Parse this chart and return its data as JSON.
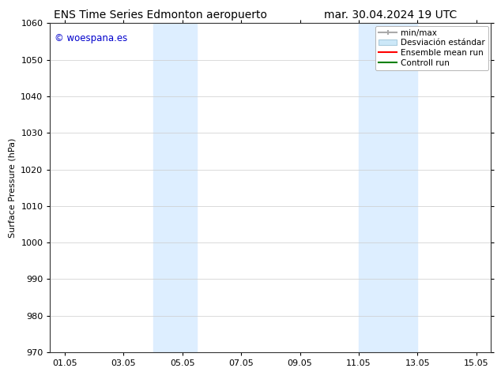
{
  "title_left": "ENS Time Series Edmonton aeropuerto",
  "title_right": "mar. 30.04.2024 19 UTC",
  "ylabel": "Surface Pressure (hPa)",
  "ylim": [
    970,
    1060
  ],
  "yticks": [
    970,
    980,
    990,
    1000,
    1010,
    1020,
    1030,
    1040,
    1050,
    1060
  ],
  "xlim": [
    0.5,
    15.5
  ],
  "xticks": [
    1.0,
    3.0,
    5.0,
    7.0,
    9.0,
    11.0,
    13.0,
    15.0
  ],
  "xticklabels": [
    "01.05",
    "03.05",
    "05.05",
    "07.05",
    "09.05",
    "11.05",
    "13.05",
    "15.05"
  ],
  "shaded_regions": [
    {
      "xmin": 4.0,
      "xmax": 5.5
    },
    {
      "xmin": 11.0,
      "xmax": 13.0
    }
  ],
  "shade_color": "#ddeeff",
  "watermark_text": "© woespana.es",
  "watermark_color": "#0000cc",
  "bg_color": "#ffffff",
  "grid_color": "#cccccc",
  "legend_label_minmax": "min/max",
  "legend_label_desv": "Desviación estándar",
  "legend_label_ensemble": "Ensemble mean run",
  "legend_label_control": "Controll run",
  "title_fontsize": 10,
  "axis_fontsize": 8,
  "tick_fontsize": 8,
  "legend_fontsize": 7.5
}
